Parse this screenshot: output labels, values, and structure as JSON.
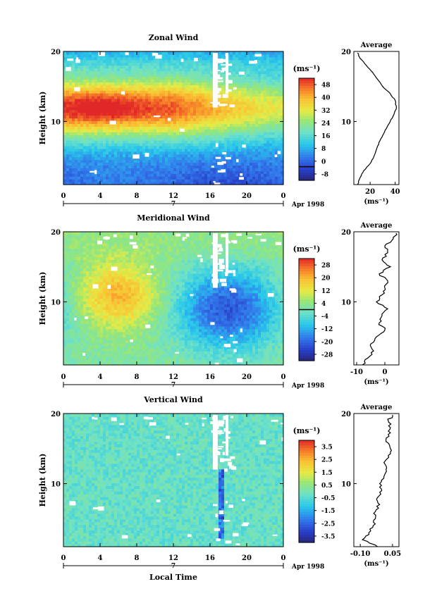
{
  "figure": {
    "x_axis_label": "Local Time",
    "date_label": "Apr 1998",
    "day_label": "7"
  },
  "chart_data": [
    {
      "type": "heatmap",
      "title": "Zonal Wind",
      "ylabel": "Height (km)",
      "xlim": [
        0,
        24
      ],
      "ylim": [
        1,
        20
      ],
      "x_ticks": [
        "0",
        "4",
        "8",
        "12",
        "16",
        "20",
        "0"
      ],
      "y_ticks": [
        "10",
        "20"
      ],
      "colorbar": {
        "unit": "(ms⁻¹)",
        "ticks": [
          "48",
          "40",
          "32",
          "24",
          "16",
          "8",
          "0",
          "-8"
        ],
        "range": [
          -8,
          52
        ],
        "zero_line": 0
      },
      "field": {
        "kind": "zonal",
        "jet_core_height_km": 12,
        "jet_core_time_h": 4,
        "jet_core_speed": 48,
        "jet_core_speed_late": 30,
        "surface_speed": 6,
        "top_speed": 18
      },
      "average_profile": {
        "title": "Average",
        "xlabel": "(ms⁻¹)",
        "x_ticks": [
          "20",
          "40"
        ],
        "xlim": [
          7,
          43
        ],
        "y_ticks": [
          "10",
          "20"
        ],
        "height": [
          1.0,
          2.0,
          3.0,
          4.0,
          5.0,
          6.0,
          7.0,
          8.0,
          9.0,
          10.0,
          11.0,
          12.0,
          13.0,
          14.0,
          15.0,
          16.0,
          17.0,
          18.0,
          19.0,
          19.8
        ],
        "speed": [
          10,
          12,
          15,
          20,
          23,
          25,
          27,
          30,
          33,
          36,
          39,
          41,
          40,
          36,
          30,
          26,
          22,
          17,
          12,
          10
        ]
      }
    },
    {
      "type": "heatmap",
      "title": "Meridional Wind",
      "ylabel": "Height (km)",
      "xlim": [
        0,
        24
      ],
      "ylim": [
        1,
        20
      ],
      "x_ticks": [
        "0",
        "4",
        "8",
        "12",
        "16",
        "20",
        "0"
      ],
      "y_ticks": [
        "10",
        "20"
      ],
      "colorbar": {
        "unit": "(ms⁻¹)",
        "ticks": [
          "28",
          "20",
          "12",
          "4",
          "-4",
          "-12",
          "-20",
          "-28"
        ],
        "range": [
          -32,
          32
        ],
        "zero_line": 0
      },
      "field": {
        "kind": "meridional",
        "warm_core_height_km": 11,
        "warm_core_time_h": 6,
        "warm_core_speed": 18,
        "cold_core_height_km": 9,
        "cold_core_time_h": 18,
        "cold_core_speed": -24
      },
      "average_profile": {
        "title": "Average",
        "xlabel": "(ms⁻¹)",
        "x_ticks": [
          "-10",
          "0"
        ],
        "xlim": [
          -11,
          5
        ],
        "y_ticks": [
          "10",
          "20"
        ],
        "height": [
          1.0,
          2.0,
          3.0,
          4.0,
          5.0,
          6.0,
          7.0,
          8.0,
          9.0,
          10.0,
          11.0,
          12.0,
          13.0,
          14.0,
          15.0,
          16.0,
          17.0,
          18.0,
          19.0,
          19.8
        ],
        "speed": [
          -8,
          -6,
          -4,
          -5,
          -3,
          0,
          -2,
          -1,
          1,
          -3,
          -1,
          0,
          1,
          -2,
          2,
          -1,
          1,
          0,
          3,
          4
        ]
      }
    },
    {
      "type": "heatmap",
      "title": "Vertical Wind",
      "ylabel": "Height (km)",
      "xlim": [
        0,
        24
      ],
      "ylim": [
        1,
        20
      ],
      "x_ticks": [
        "0",
        "4",
        "8",
        "12",
        "16",
        "20",
        "0"
      ],
      "y_ticks": [
        "10",
        "20"
      ],
      "colorbar": {
        "unit": "(ms⁻¹)",
        "ticks": [
          "3.5",
          "2.5",
          "1.5",
          "0.5",
          "-0.5",
          "-1.5",
          "-2.5",
          "-3.5"
        ],
        "range": [
          -4,
          4
        ],
        "zero_line": null
      },
      "field": {
        "kind": "vertical",
        "background": -0.3
      },
      "average_profile": {
        "title": "Average",
        "xlabel": "(ms⁻¹)",
        "x_ticks": [
          "-0.10",
          "0.05"
        ],
        "xlim": [
          -0.13,
          0.08
        ],
        "y_ticks": [
          "10",
          "20"
        ],
        "height": [
          1.0,
          2.0,
          3.0,
          4.0,
          5.0,
          6.0,
          7.0,
          8.0,
          9.0,
          10.0,
          11.0,
          12.0,
          13.0,
          14.0,
          15.0,
          16.0,
          17.0,
          18.0,
          19.0,
          19.8
        ],
        "speed": [
          -0.02,
          -0.09,
          -0.06,
          -0.04,
          -0.03,
          -0.03,
          -0.01,
          -0.02,
          0.0,
          -0.01,
          0.01,
          0.02,
          0.01,
          0.03,
          0.04,
          0.02,
          0.03,
          0.04,
          0.03,
          0.05
        ]
      }
    }
  ]
}
